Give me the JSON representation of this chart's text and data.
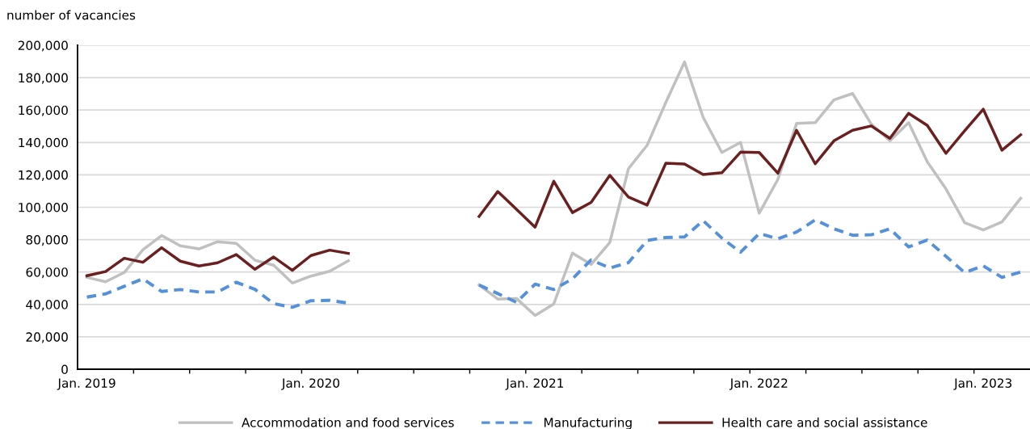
{
  "chart_data": {
    "type": "line",
    "ylabel": "number of vacancies",
    "categories": [
      "Jan. 2019",
      null,
      null,
      null,
      null,
      null,
      null,
      null,
      null,
      null,
      null,
      null,
      "Jan. 2020",
      null,
      null,
      null,
      null,
      null,
      null,
      null,
      null,
      null,
      null,
      null,
      "Jan. 2021",
      null,
      null,
      null,
      null,
      null,
      null,
      null,
      null,
      null,
      null,
      null,
      "Jan. 2022",
      null,
      null,
      null,
      null,
      null,
      null,
      null,
      null,
      null,
      null,
      null,
      "Jan. 2023",
      null,
      null
    ],
    "series": [
      {
        "name": "Accommodation and food services",
        "color": "#c0c0c0",
        "line_style": "solid",
        "values": [
          56700,
          54000,
          59700,
          73800,
          82500,
          76200,
          74300,
          78700,
          77700,
          67300,
          64200,
          53200,
          57500,
          60500,
          67000,
          null,
          null,
          null,
          null,
          null,
          null,
          52000,
          43300,
          43700,
          33200,
          40300,
          71700,
          64700,
          78300,
          123800,
          138300,
          164700,
          189700,
          155500,
          133800,
          140000,
          96300,
          117200,
          151700,
          152200,
          166300,
          170200,
          151300,
          141000,
          152200,
          128000,
          111300,
          90500,
          86000,
          91000,
          105500
        ]
      },
      {
        "name": "Manufacturing",
        "color": "#5591d9",
        "line_style": "dashed",
        "values": [
          44500,
          46500,
          51200,
          55800,
          48000,
          49200,
          47700,
          47700,
          53700,
          49300,
          40500,
          38200,
          42300,
          42500,
          40800,
          null,
          null,
          null,
          null,
          null,
          null,
          52000,
          46700,
          41300,
          52500,
          49200,
          55800,
          67500,
          62500,
          65800,
          79500,
          81300,
          81700,
          91700,
          81000,
          72200,
          83800,
          80500,
          84700,
          92200,
          86700,
          82700,
          83000,
          86700,
          75500,
          79700,
          69700,
          59700,
          63800,
          56700,
          60000
        ]
      },
      {
        "name": "Health care and social assistance",
        "color": "#6b2020",
        "line_style": "solid",
        "values": [
          57700,
          60300,
          68500,
          66000,
          75000,
          66700,
          63700,
          65700,
          70800,
          61700,
          69300,
          61000,
          70200,
          73500,
          71500,
          null,
          null,
          null,
          null,
          null,
          null,
          94300,
          109700,
          98800,
          87700,
          116000,
          96700,
          103000,
          119700,
          106300,
          101300,
          127200,
          126700,
          120200,
          121300,
          134000,
          133800,
          121000,
          147500,
          126800,
          141000,
          147500,
          150200,
          142500,
          158000,
          150500,
          133300,
          147200,
          160500,
          135200,
          144700
        ]
      }
    ],
    "ylim": [
      0,
      200000
    ],
    "yticks": [
      0,
      {
        "value": 20000,
        "label": "20,000"
      },
      {
        "value": 40000,
        "label": "40,000"
      },
      {
        "value": 60000,
        "label": "60,000"
      },
      {
        "value": 80000,
        "label": "80,000"
      },
      {
        "value": 100000,
        "label": "100,000"
      },
      {
        "value": 120000,
        "label": "120,000"
      },
      {
        "value": 140000,
        "label": "140,000"
      },
      {
        "value": 160000,
        "label": "160,000"
      },
      {
        "value": 180000,
        "label": "180,000"
      },
      {
        "value": 200000,
        "label": "200,000"
      }
    ],
    "grid": "y",
    "legend": "bottom",
    "marker": "none"
  }
}
